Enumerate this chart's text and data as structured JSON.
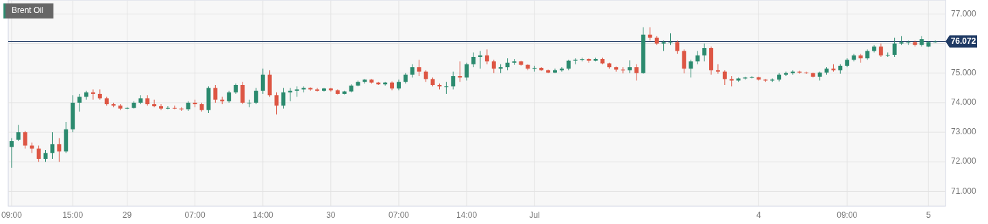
{
  "chart_data": {
    "type": "candlestick",
    "title": "Brent Oil",
    "categories": [
      "09:00",
      null,
      null,
      null,
      null,
      null,
      null,
      null,
      null,
      "15:00",
      null,
      null,
      null,
      null,
      null,
      null,
      null,
      "29",
      null,
      null,
      null,
      null,
      null,
      null,
      null,
      null,
      null,
      "07:00",
      null,
      null,
      null,
      null,
      null,
      null,
      null,
      null,
      null,
      "14:00",
      null,
      null,
      null,
      null,
      null,
      null,
      null,
      null,
      null,
      "30",
      null,
      null,
      null,
      null,
      null,
      null,
      null,
      null,
      null,
      "07:00",
      null,
      null,
      null,
      null,
      null,
      null,
      null,
      null,
      null,
      "14:00",
      null,
      null,
      null,
      null,
      null,
      null,
      null,
      null,
      null,
      "Jul",
      null,
      null,
      null,
      null,
      null,
      null,
      null,
      null,
      null,
      null,
      null,
      null,
      null,
      null,
      null,
      null,
      null,
      null,
      null,
      null,
      null,
      null,
      null,
      null,
      null,
      null,
      null,
      null,
      null,
      null,
      null,
      null,
      "4",
      null,
      null,
      null,
      null,
      null,
      null,
      null,
      null,
      null,
      null,
      null,
      null,
      "09:00",
      null,
      null,
      null,
      null,
      null,
      null,
      null,
      null,
      null,
      null,
      null,
      "5",
      null
    ],
    "ohlc": [
      [
        72.5,
        72.8,
        71.8,
        72.7
      ],
      [
        72.75,
        73.25,
        72.7,
        73.0
      ],
      [
        73.0,
        73.05,
        72.45,
        72.55
      ],
      [
        72.55,
        72.65,
        72.3,
        72.45
      ],
      [
        72.45,
        72.55,
        72.0,
        72.1
      ],
      [
        72.1,
        72.4,
        72.0,
        72.3
      ],
      [
        72.3,
        73.0,
        72.1,
        72.6
      ],
      [
        72.6,
        72.8,
        72.0,
        72.35
      ],
      [
        72.35,
        73.35,
        72.3,
        73.1
      ],
      [
        73.1,
        74.25,
        73.0,
        74.0
      ],
      [
        74.0,
        74.3,
        73.7,
        74.2
      ],
      [
        74.2,
        74.4,
        74.1,
        74.35
      ],
      [
        74.35,
        74.45,
        74.1,
        74.3
      ],
      [
        74.3,
        74.45,
        74.1,
        74.15
      ],
      [
        74.15,
        74.2,
        73.9,
        73.95
      ],
      [
        73.95,
        74.0,
        73.85,
        73.9
      ],
      [
        73.9,
        73.95,
        73.75,
        73.8
      ],
      [
        73.8,
        73.85,
        73.78,
        73.82
      ],
      [
        73.82,
        74.05,
        73.8,
        74.0
      ],
      [
        74.0,
        74.25,
        73.95,
        74.15
      ],
      [
        74.15,
        74.25,
        73.9,
        73.95
      ],
      [
        73.95,
        74.1,
        73.85,
        73.88
      ],
      [
        73.88,
        73.95,
        73.75,
        73.8
      ],
      [
        73.8,
        73.88,
        73.78,
        73.82
      ],
      [
        73.82,
        73.9,
        73.78,
        73.8
      ],
      [
        73.8,
        73.85,
        73.72,
        73.78
      ],
      [
        73.78,
        74.05,
        73.72,
        74.0
      ],
      [
        74.0,
        74.1,
        73.85,
        73.95
      ],
      [
        73.95,
        74.0,
        73.7,
        73.75
      ],
      [
        73.75,
        74.55,
        73.65,
        74.5
      ],
      [
        74.5,
        74.6,
        74.0,
        74.1
      ],
      [
        74.1,
        74.2,
        73.95,
        74.05
      ],
      [
        74.05,
        74.4,
        74.0,
        74.35
      ],
      [
        74.35,
        74.65,
        74.3,
        74.6
      ],
      [
        74.6,
        74.7,
        73.95,
        74.0
      ],
      [
        74.0,
        74.1,
        73.85,
        74.0
      ],
      [
        74.0,
        74.5,
        73.95,
        74.4
      ],
      [
        74.4,
        75.15,
        74.3,
        74.95
      ],
      [
        74.95,
        75.1,
        74.2,
        74.25
      ],
      [
        74.25,
        74.35,
        73.6,
        73.9
      ],
      [
        73.9,
        74.5,
        73.8,
        74.35
      ],
      [
        74.35,
        74.5,
        74.05,
        74.4
      ],
      [
        74.4,
        74.55,
        74.2,
        74.45
      ],
      [
        74.45,
        74.55,
        74.35,
        74.5
      ],
      [
        74.5,
        74.52,
        74.4,
        74.45
      ],
      [
        74.45,
        74.5,
        74.38,
        74.4
      ],
      [
        74.4,
        74.5,
        74.38,
        74.48
      ],
      [
        74.48,
        74.5,
        74.38,
        74.42
      ],
      [
        74.42,
        74.45,
        74.28,
        74.3
      ],
      [
        74.3,
        74.4,
        74.28,
        74.38
      ],
      [
        74.38,
        74.62,
        74.35,
        74.58
      ],
      [
        74.58,
        74.75,
        74.55,
        74.7
      ],
      [
        74.7,
        74.8,
        74.65,
        74.78
      ],
      [
        74.78,
        74.8,
        74.65,
        74.68
      ],
      [
        74.68,
        74.7,
        74.6,
        74.62
      ],
      [
        74.62,
        74.7,
        74.58,
        74.68
      ],
      [
        74.68,
        74.72,
        74.42,
        74.48
      ],
      [
        74.48,
        74.78,
        74.42,
        74.7
      ],
      [
        74.7,
        75.0,
        74.65,
        74.95
      ],
      [
        74.95,
        75.3,
        74.85,
        75.2
      ],
      [
        75.2,
        75.45,
        74.9,
        75.05
      ],
      [
        75.05,
        75.1,
        74.7,
        74.8
      ],
      [
        74.8,
        74.85,
        74.55,
        74.6
      ],
      [
        74.6,
        74.65,
        74.45,
        74.55
      ],
      [
        74.55,
        74.7,
        74.3,
        74.55
      ],
      [
        74.55,
        75.05,
        74.45,
        74.9
      ],
      [
        74.9,
        75.4,
        74.7,
        74.85
      ],
      [
        74.85,
        75.35,
        74.75,
        75.3
      ],
      [
        75.3,
        75.7,
        75.2,
        75.55
      ],
      [
        75.55,
        75.75,
        75.15,
        75.6
      ],
      [
        75.6,
        75.8,
        75.3,
        75.4
      ],
      [
        75.4,
        75.45,
        75.0,
        75.15
      ],
      [
        75.15,
        75.3,
        75.0,
        75.2
      ],
      [
        75.2,
        75.5,
        75.1,
        75.35
      ],
      [
        75.35,
        75.48,
        75.28,
        75.4
      ],
      [
        75.4,
        75.42,
        75.25,
        75.28
      ],
      [
        75.28,
        75.3,
        75.1,
        75.15
      ],
      [
        75.15,
        75.25,
        75.05,
        75.18
      ],
      [
        75.18,
        75.2,
        75.08,
        75.1
      ],
      [
        75.1,
        75.12,
        75.0,
        75.02
      ],
      [
        75.02,
        75.15,
        75.0,
        75.1
      ],
      [
        75.1,
        75.2,
        75.05,
        75.15
      ],
      [
        75.15,
        75.45,
        75.1,
        75.42
      ],
      [
        75.42,
        75.5,
        75.3,
        75.45
      ],
      [
        75.45,
        75.52,
        75.4,
        75.48
      ],
      [
        75.48,
        75.5,
        75.35,
        75.42
      ],
      [
        75.42,
        75.52,
        75.4,
        75.48
      ],
      [
        75.48,
        75.52,
        75.3,
        75.33
      ],
      [
        75.33,
        75.35,
        75.15,
        75.2
      ],
      [
        75.2,
        75.22,
        75.05,
        75.12
      ],
      [
        75.12,
        75.2,
        74.99,
        75.1
      ],
      [
        75.1,
        75.43,
        75.0,
        75.2
      ],
      [
        75.2,
        75.3,
        74.75,
        75.0
      ],
      [
        75.0,
        76.55,
        74.98,
        76.3
      ],
      [
        76.3,
        76.55,
        76.1,
        76.2
      ],
      [
        76.2,
        76.25,
        75.95,
        76.0
      ],
      [
        76.0,
        76.1,
        75.75,
        76.05
      ],
      [
        76.05,
        76.35,
        75.95,
        76.05
      ],
      [
        76.05,
        76.1,
        75.65,
        75.75
      ],
      [
        75.75,
        75.8,
        74.99,
        75.15
      ],
      [
        75.15,
        75.45,
        74.85,
        75.4
      ],
      [
        75.4,
        75.75,
        75.3,
        75.6
      ],
      [
        75.6,
        76.0,
        75.4,
        75.85
      ],
      [
        75.85,
        75.9,
        74.95,
        75.1
      ],
      [
        75.1,
        75.3,
        74.98,
        75.05
      ],
      [
        75.05,
        75.1,
        74.6,
        74.8
      ],
      [
        74.8,
        74.9,
        74.55,
        74.75
      ],
      [
        74.75,
        74.85,
        74.7,
        74.82
      ],
      [
        74.82,
        74.88,
        74.78,
        74.85
      ],
      [
        74.85,
        74.9,
        74.82,
        74.86
      ],
      [
        74.86,
        74.88,
        74.75,
        74.78
      ],
      [
        74.78,
        74.8,
        74.7,
        74.75
      ],
      [
        74.75,
        74.82,
        74.7,
        74.78
      ],
      [
        74.78,
        75.0,
        74.72,
        74.95
      ],
      [
        74.95,
        75.05,
        74.9,
        75.0
      ],
      [
        75.0,
        75.1,
        74.95,
        75.05
      ],
      [
        75.05,
        75.08,
        74.98,
        75.02
      ],
      [
        75.02,
        75.05,
        74.97,
        75.0
      ],
      [
        75.0,
        75.02,
        74.85,
        74.88
      ],
      [
        74.88,
        75.05,
        74.75,
        75.02
      ],
      [
        75.02,
        75.2,
        74.95,
        75.15
      ],
      [
        75.15,
        75.3,
        75.05,
        75.1
      ],
      [
        75.1,
        75.3,
        74.98,
        75.25
      ],
      [
        75.25,
        75.5,
        75.2,
        75.45
      ],
      [
        75.45,
        75.65,
        75.4,
        75.6
      ],
      [
        75.6,
        75.65,
        75.35,
        75.5
      ],
      [
        75.5,
        75.8,
        75.45,
        75.75
      ],
      [
        75.75,
        75.95,
        75.7,
        75.9
      ],
      [
        75.9,
        76.0,
        75.55,
        75.6
      ],
      [
        75.6,
        75.7,
        75.55,
        75.62
      ],
      [
        75.62,
        76.2,
        75.55,
        76.0
      ],
      [
        76.0,
        76.25,
        75.95,
        76.05
      ],
      [
        76.05,
        76.1,
        75.95,
        76.05
      ],
      [
        76.05,
        76.1,
        75.9,
        75.95
      ],
      [
        75.95,
        76.25,
        75.9,
        76.15
      ],
      [
        75.9,
        76.08,
        75.88,
        76.05
      ],
      [
        76.05,
        76.1,
        76.03,
        76.07
      ]
    ],
    "ylim": [
      70.5,
      77.45
    ],
    "yticks": [
      {
        "value": 71,
        "label": "71.000"
      },
      {
        "value": 72,
        "label": "72.000"
      },
      {
        "value": 73,
        "label": "73.000"
      },
      {
        "value": 74,
        "label": "74.000"
      },
      {
        "value": 75,
        "label": "75.000"
      },
      {
        "value": 76,
        "label": null
      },
      {
        "value": 77,
        "label": "77.000"
      }
    ],
    "ref_lines": [
      {
        "axis": "y",
        "value": 76.072,
        "label": "76.072",
        "color": "#1f3a64"
      }
    ],
    "grid": true
  }
}
